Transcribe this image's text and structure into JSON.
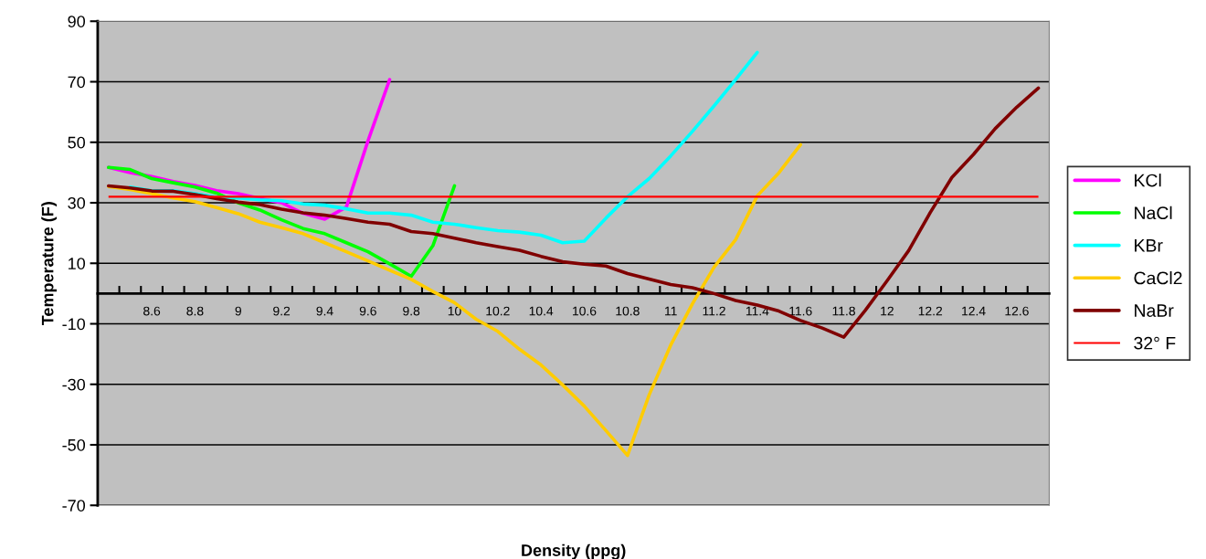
{
  "chart_data": {
    "type": "line",
    "xlabel": "Density (ppg)",
    "ylabel": "Temperature (F)",
    "categories": [
      null,
      null,
      "8.6",
      null,
      "8.8",
      null,
      "9",
      null,
      "9.2",
      null,
      "9.4",
      null,
      "9.6",
      null,
      "9.8",
      null,
      "10",
      null,
      "10.2",
      null,
      "10.4",
      null,
      "10.6",
      null,
      "10.8",
      null,
      "11",
      null,
      "11.2",
      null,
      "11.4",
      null,
      "11.6",
      null,
      "11.8",
      null,
      "12",
      null,
      "12.2",
      null,
      "12.4",
      null,
      "12.6",
      null
    ],
    "series": [
      {
        "name": "KCl",
        "color": "#ff00ff",
        "values": [
          41.7,
          40,
          38.7,
          37,
          35.7,
          34,
          33,
          31.4,
          30,
          26.5,
          24.6,
          28.6,
          50.5,
          70.7,
          null,
          null,
          null,
          null,
          null,
          null,
          null,
          null,
          null,
          null,
          null,
          null,
          null,
          null,
          null,
          null,
          null,
          null,
          null,
          null,
          null,
          null,
          null,
          null,
          null,
          null,
          null,
          null,
          null,
          null
        ]
      },
      {
        "name": "NaCl",
        "color": "#00ff00",
        "values": [
          41.7,
          41,
          38,
          36.6,
          35.2,
          33.2,
          30,
          27.6,
          24.4,
          21.5,
          19.8,
          16.8,
          13.8,
          9.8,
          5.7,
          15.8,
          35.6,
          null,
          null,
          null,
          null,
          null,
          null,
          null,
          null,
          null,
          null,
          null,
          null,
          null,
          null,
          null,
          null,
          null,
          null,
          null,
          null,
          null,
          null,
          null,
          null,
          null,
          null,
          null
        ]
      },
      {
        "name": "KBr",
        "color": "#00ffff",
        "values": [
          null,
          35.2,
          34,
          34,
          33,
          31.9,
          31.6,
          31,
          30.7,
          29.6,
          29.2,
          28,
          26.6,
          26.6,
          25.9,
          23.6,
          22.9,
          21.8,
          20.8,
          20.3,
          19.3,
          16.8,
          17.3,
          24.9,
          32,
          38,
          45.5,
          53.6,
          62,
          70.7,
          79.7,
          null,
          null,
          null,
          null,
          null,
          null,
          null,
          null,
          null,
          null,
          null,
          null,
          null
        ]
      },
      {
        "name": "CaCl2",
        "color": "#ffcc00",
        "values": [
          35.4,
          34.4,
          33,
          31.6,
          30.4,
          28.4,
          26.4,
          23.6,
          21.8,
          19.8,
          16.8,
          13.8,
          10.8,
          7.7,
          4.7,
          0.7,
          -3,
          -8.5,
          -12.5,
          -18.4,
          -23.6,
          -30.2,
          -37.2,
          -45.3,
          -53.5,
          -33.5,
          -17,
          -3.4,
          8.7,
          17.8,
          32.3,
          39.9,
          49.2,
          null,
          null,
          null,
          null,
          null,
          null,
          null,
          null,
          null,
          null,
          null
        ]
      },
      {
        "name": "NaBr",
        "color": "#800000",
        "values": [
          35.6,
          34.9,
          33.9,
          33.8,
          32.7,
          31.4,
          30.2,
          29.4,
          27.9,
          26.7,
          25.9,
          24.8,
          23.6,
          22.9,
          20.5,
          19.8,
          18.3,
          16.8,
          15.5,
          14.3,
          12.3,
          10.5,
          9.7,
          9.1,
          6.6,
          4.8,
          3,
          1.9,
          0,
          -2.3,
          -3.8,
          -5.8,
          -8.9,
          -11.4,
          -14.4,
          -5.5,
          4.2,
          14.2,
          26.8,
          38.4,
          46,
          54.5,
          61.6,
          67.9
        ]
      }
    ],
    "ref_lines": [
      {
        "axis": "y",
        "value": 32,
        "label": "32° F",
        "color": "#ff0000"
      }
    ],
    "ylim": [
      -70,
      90
    ],
    "yticks": [
      -70,
      -50,
      -30,
      -10,
      10,
      30,
      50,
      70,
      90
    ],
    "grid": "y",
    "legend": "right"
  }
}
